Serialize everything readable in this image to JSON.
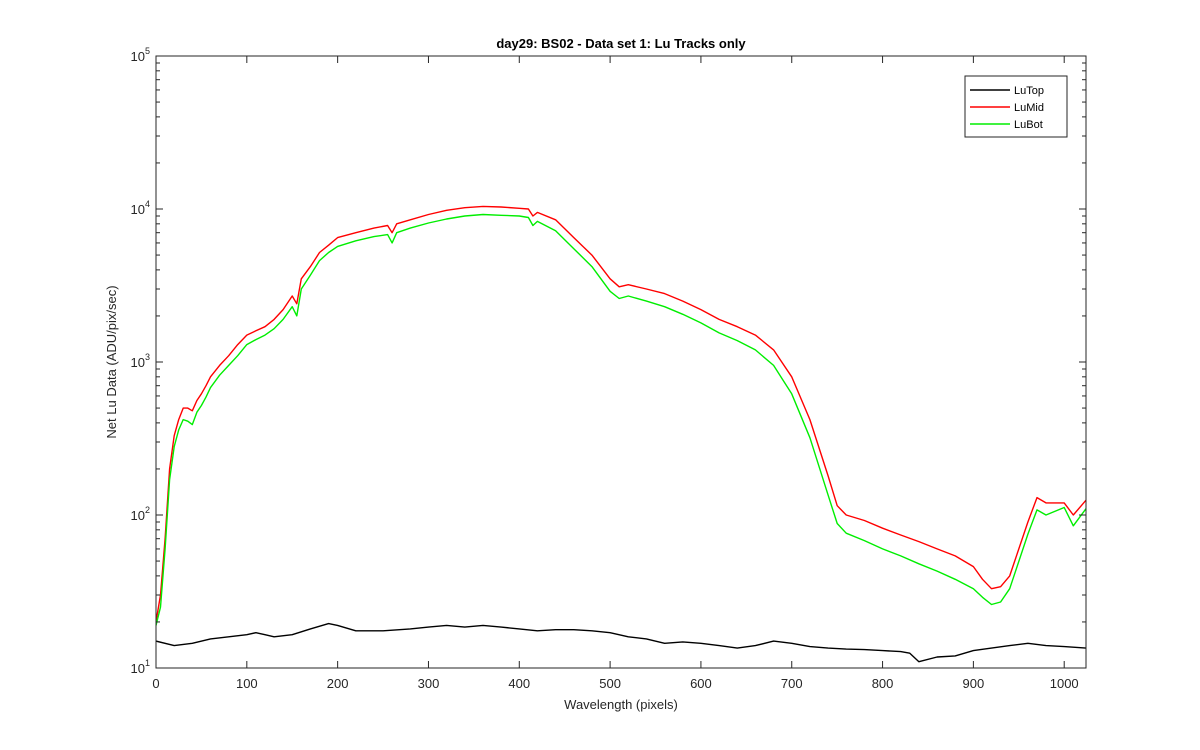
{
  "chart_data": {
    "type": "line",
    "title": "day29: BS02 - Data set 1: Lu Tracks only",
    "xlabel": "Wavelength (pixels)",
    "ylabel": "Net Lu Data (ADU/pix/sec)",
    "xlim": [
      0,
      1024
    ],
    "ylim": [
      10,
      100000
    ],
    "yscale": "log",
    "xticks": [
      0,
      100,
      200,
      300,
      400,
      500,
      600,
      700,
      800,
      900,
      1000
    ],
    "yticks": [
      10,
      100,
      1000,
      10000,
      100000
    ],
    "ytick_labels": [
      {
        "base": "10",
        "exp": "1"
      },
      {
        "base": "10",
        "exp": "2"
      },
      {
        "base": "10",
        "exp": "3"
      },
      {
        "base": "10",
        "exp": "4"
      },
      {
        "base": "10",
        "exp": "5"
      }
    ],
    "grid": false,
    "legend_position": "top-right",
    "series": [
      {
        "name": "LuTop",
        "color": "#000000",
        "x": [
          0,
          20,
          40,
          60,
          80,
          100,
          110,
          120,
          130,
          150,
          170,
          190,
          200,
          220,
          250,
          280,
          300,
          320,
          340,
          360,
          380,
          400,
          420,
          440,
          460,
          480,
          500,
          520,
          540,
          560,
          580,
          600,
          620,
          640,
          660,
          680,
          700,
          720,
          740,
          760,
          780,
          800,
          820,
          830,
          840,
          860,
          880,
          900,
          920,
          940,
          960,
          980,
          1000,
          1024
        ],
        "y": [
          15,
          14,
          14.5,
          15.5,
          16,
          16.5,
          17,
          16.5,
          16,
          16.5,
          18,
          19.5,
          19,
          17.5,
          17.5,
          18,
          18.5,
          19,
          18.5,
          19,
          18.5,
          18,
          17.5,
          17.8,
          17.8,
          17.5,
          17,
          16,
          15.5,
          14.5,
          14.8,
          14.5,
          14,
          13.5,
          14,
          15,
          14.5,
          13.8,
          13.5,
          13.3,
          13.2,
          13,
          12.8,
          12.5,
          11,
          11.8,
          12,
          13,
          13.5,
          14,
          14.5,
          14,
          13.8,
          13.5
        ]
      },
      {
        "name": "LuMid",
        "color": "#ff0000",
        "x": [
          0,
          5,
          10,
          15,
          20,
          25,
          30,
          35,
          40,
          45,
          50,
          55,
          60,
          70,
          80,
          90,
          100,
          110,
          120,
          130,
          140,
          150,
          155,
          160,
          170,
          180,
          190,
          200,
          220,
          240,
          255,
          260,
          265,
          280,
          300,
          320,
          340,
          360,
          380,
          400,
          410,
          415,
          420,
          440,
          460,
          480,
          500,
          510,
          520,
          540,
          560,
          580,
          600,
          620,
          640,
          660,
          680,
          700,
          720,
          740,
          750,
          760,
          780,
          800,
          820,
          840,
          860,
          880,
          900,
          910,
          920,
          930,
          940,
          960,
          970,
          980,
          1000,
          1010,
          1024
        ],
        "y": [
          20,
          30,
          70,
          200,
          330,
          420,
          500,
          500,
          480,
          560,
          620,
          700,
          800,
          950,
          1100,
          1300,
          1500,
          1600,
          1700,
          1900,
          2200,
          2700,
          2400,
          3500,
          4200,
          5200,
          5800,
          6500,
          7000,
          7500,
          7800,
          7000,
          8000,
          8500,
          9200,
          9800,
          10200,
          10400,
          10300,
          10100,
          10000,
          9000,
          9500,
          8500,
          6500,
          5000,
          3500,
          3100,
          3200,
          3000,
          2800,
          2500,
          2200,
          1900,
          1700,
          1500,
          1200,
          800,
          420,
          180,
          115,
          100,
          92,
          82,
          74,
          67,
          60,
          54,
          46,
          38,
          33,
          34,
          40,
          90,
          130,
          120,
          120,
          100,
          125
        ]
      },
      {
        "name": "LuBot",
        "color": "#00ee00",
        "x": [
          0,
          5,
          10,
          15,
          20,
          25,
          30,
          35,
          40,
          45,
          50,
          55,
          60,
          70,
          80,
          90,
          100,
          110,
          120,
          130,
          140,
          150,
          155,
          160,
          170,
          180,
          190,
          200,
          220,
          240,
          255,
          260,
          265,
          280,
          300,
          320,
          340,
          360,
          380,
          400,
          410,
          415,
          420,
          440,
          460,
          480,
          500,
          510,
          520,
          540,
          560,
          580,
          600,
          620,
          640,
          660,
          680,
          700,
          720,
          740,
          750,
          760,
          780,
          800,
          820,
          840,
          860,
          880,
          900,
          910,
          920,
          930,
          940,
          960,
          970,
          980,
          1000,
          1010,
          1024
        ],
        "y": [
          19,
          25,
          60,
          170,
          280,
          360,
          420,
          410,
          390,
          470,
          520,
          590,
          680,
          820,
          950,
          1100,
          1300,
          1400,
          1500,
          1650,
          1900,
          2300,
          2000,
          3000,
          3700,
          4600,
          5200,
          5700,
          6200,
          6600,
          6800,
          6000,
          7000,
          7500,
          8100,
          8600,
          9000,
          9200,
          9100,
          9000,
          8800,
          7800,
          8300,
          7200,
          5500,
          4200,
          2900,
          2600,
          2700,
          2500,
          2300,
          2050,
          1800,
          1550,
          1380,
          1200,
          950,
          620,
          320,
          135,
          88,
          76,
          68,
          60,
          54,
          48,
          43,
          38,
          33,
          29,
          26,
          27,
          33,
          75,
          108,
          100,
          112,
          85,
          110
        ]
      }
    ]
  }
}
